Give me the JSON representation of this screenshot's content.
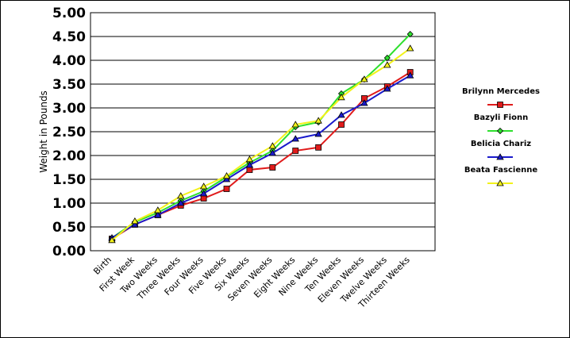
{
  "chart_data": {
    "type": "line",
    "title": "",
    "xlabel": "",
    "ylabel": "Weight in Pounds",
    "ylim": [
      0,
      5
    ],
    "yticks": [
      "0.00",
      "0.50",
      "1.00",
      "1.50",
      "2.00",
      "2.50",
      "3.00",
      "3.50",
      "4.00",
      "4.50",
      "5.00"
    ],
    "categories": [
      "Birth",
      "First Week",
      "Two Weeks",
      "Three Weeks",
      "Four Weeks",
      "Five Weeks",
      "Six Weeks",
      "Seven Weeks",
      "Eight Weeks",
      "Nine Weeks",
      "Ten Weeks",
      "Eleven Weeks",
      "Twelve Weeks",
      "Thirteen Weeks"
    ],
    "grid": true,
    "legend_position": "right",
    "series": [
      {
        "name": "Brilynn Mercedes",
        "color": "#e01b1b",
        "marker": "square",
        "values": [
          0.25,
          0.55,
          0.75,
          0.95,
          1.1,
          1.3,
          1.7,
          1.75,
          2.1,
          2.17,
          2.65,
          3.2,
          3.45,
          3.75
        ]
      },
      {
        "name": "Bazyli Fionn",
        "color": "#2ee02e",
        "marker": "diamond",
        "values": [
          0.27,
          0.6,
          0.8,
          1.05,
          1.25,
          1.55,
          1.85,
          2.1,
          2.6,
          2.7,
          3.3,
          3.6,
          4.05,
          4.55
        ]
      },
      {
        "name": "Belicia Chariz",
        "color": "#1a1acc",
        "marker": "triangle",
        "values": [
          0.27,
          0.55,
          0.75,
          1.0,
          1.2,
          1.5,
          1.8,
          2.05,
          2.35,
          2.45,
          2.85,
          3.1,
          3.4,
          3.68
        ]
      },
      {
        "name": "Beata Fascienne",
        "color": "#f2f21a",
        "marker": "triangle-open",
        "values": [
          0.22,
          0.62,
          0.85,
          1.15,
          1.35,
          1.57,
          1.92,
          2.2,
          2.65,
          2.73,
          3.22,
          3.6,
          3.9,
          4.25
        ]
      }
    ]
  }
}
